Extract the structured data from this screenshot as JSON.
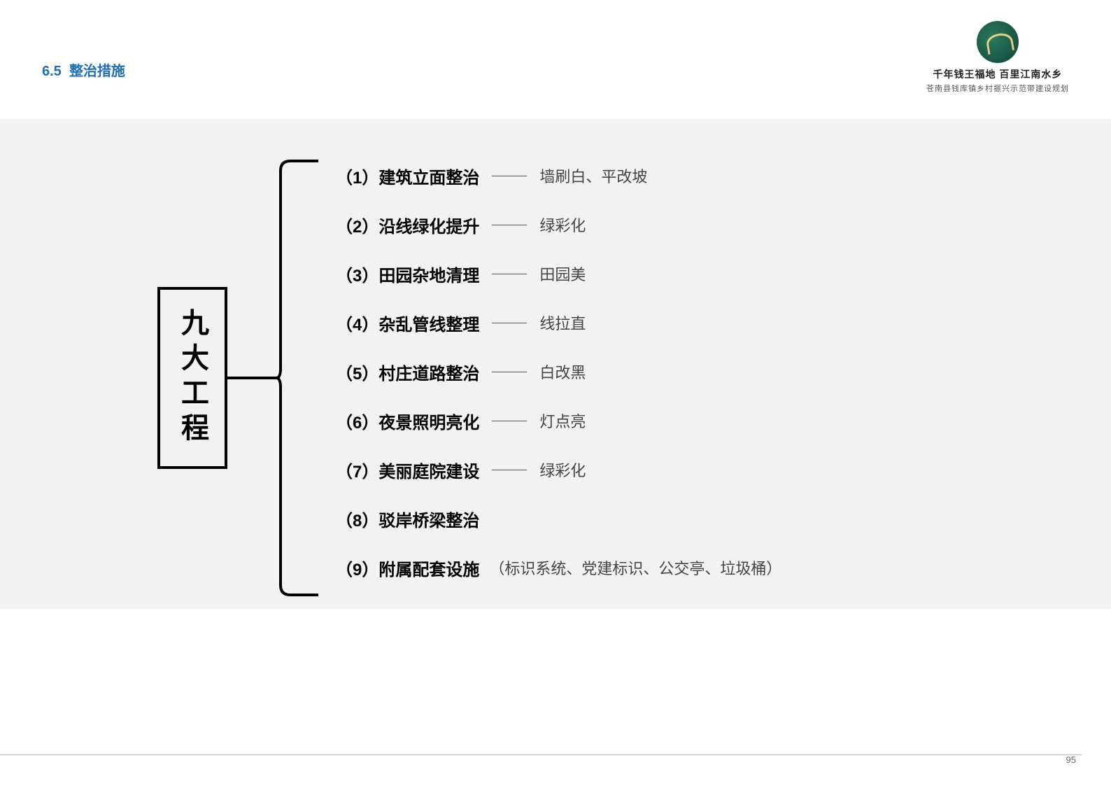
{
  "section": {
    "number": "6.5",
    "title": "整治措施"
  },
  "header": {
    "slogan": "千年钱王福地  百里江南水乡",
    "subtitle": "苍南县钱库镇乡村振兴示范带建设规划"
  },
  "diagram": {
    "main_label": "九大工程",
    "bracket_color": "#000000",
    "bracket_stroke": 4,
    "items": [
      {
        "num": "（1）",
        "title": "建筑立面整治",
        "desc": "墙刷白、平改坡"
      },
      {
        "num": "（2）",
        "title": "沿线绿化提升",
        "desc": "绿彩化"
      },
      {
        "num": "（3）",
        "title": "田园杂地清理",
        "desc": "田园美"
      },
      {
        "num": "（4）",
        "title": "杂乱管线整理",
        "desc": "线拉直"
      },
      {
        "num": "（5）",
        "title": "村庄道路整治",
        "desc": "白改黑"
      },
      {
        "num": "（6）",
        "title": "夜景照明亮化",
        "desc": "灯点亮"
      },
      {
        "num": "（7）",
        "title": "美丽庭院建设",
        "desc": "绿彩化"
      },
      {
        "num": "（8）",
        "title": "驳岸桥梁整治",
        "desc": ""
      },
      {
        "num": "（9）",
        "title": "附属配套设施",
        "desc": "（标识系统、党建标识、公交亭、垃圾桶）"
      }
    ]
  },
  "page_number": "95",
  "colors": {
    "section_title": "#1e6fb8",
    "content_bg": "#f2f2f0",
    "text_bold": "#000000",
    "text_desc": "#444444"
  }
}
